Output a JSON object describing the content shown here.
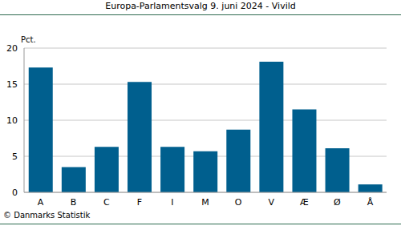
{
  "chart_data": {
    "type": "bar",
    "title": "Europa-Parlamentsvalg 9. juni 2024 - Vivild",
    "y_label": "Pct.",
    "annotations": [
      "© Danmarks Statistik"
    ],
    "categories": [
      "A",
      "B",
      "C",
      "F",
      "I",
      "M",
      "O",
      "V",
      "Æ",
      "Ø",
      "Å"
    ],
    "values": [
      17.3,
      3.5,
      6.3,
      15.3,
      6.3,
      5.7,
      8.7,
      18.1,
      11.5,
      6.1,
      1.1
    ],
    "color": "#005f8e",
    "ylim": [
      0,
      20
    ],
    "yticks": [
      0,
      5,
      10,
      15,
      20
    ],
    "grid": true
  }
}
